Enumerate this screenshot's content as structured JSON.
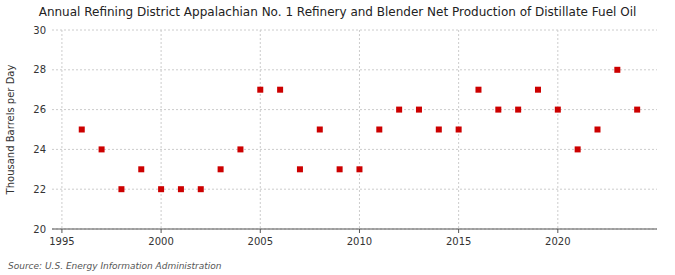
{
  "chart_data": {
    "type": "scatter",
    "title": "Annual Refining District Appalachian No. 1 Refinery and Blender Net Production of Distillate Fuel Oil",
    "ylabel": "Thousand Barrels per Day",
    "annotations": [
      "Source: U.S. Energy Information Administration"
    ],
    "x": [
      1996,
      1997,
      1998,
      1999,
      2000,
      2001,
      2002,
      2003,
      2004,
      2005,
      2006,
      2007,
      2008,
      2009,
      2010,
      2011,
      2012,
      2013,
      2014,
      2015,
      2016,
      2017,
      2018,
      2019,
      2020,
      2021,
      2022,
      2023,
      2024
    ],
    "values": [
      25,
      24,
      22,
      23,
      22,
      22,
      22,
      23,
      24,
      27,
      27,
      23,
      25,
      23,
      23,
      25,
      26,
      26,
      25,
      25,
      27,
      26,
      26,
      27,
      26,
      24,
      25,
      28,
      26
    ],
    "color": "#cc0000",
    "marker": "square",
    "grid": true,
    "xlim": [
      1994.5,
      2025
    ],
    "ylim": [
      20,
      30
    ],
    "xticks": [
      1995,
      2000,
      2005,
      2010,
      2015,
      2020
    ],
    "yticks": [
      20,
      22,
      24,
      26,
      28,
      30
    ]
  }
}
